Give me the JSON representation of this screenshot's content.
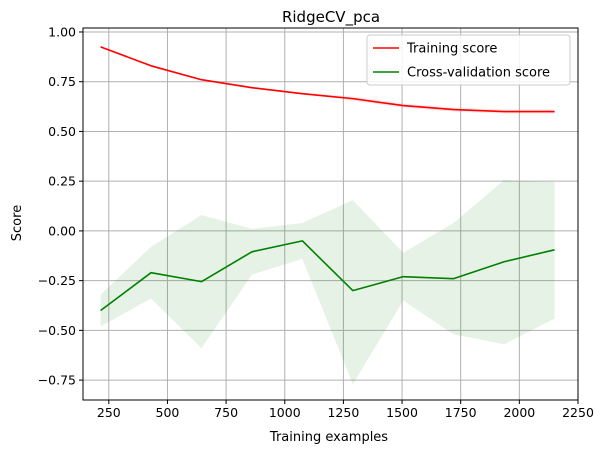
{
  "chart_data": {
    "type": "line",
    "title": "RidgeCV_pca",
    "xlabel": "Training examples",
    "ylabel": "Score",
    "xlim": [
      140,
      2250
    ],
    "ylim": [
      -0.85,
      1.02
    ],
    "xticks": [
      250,
      500,
      750,
      1000,
      1250,
      1500,
      1750,
      2000,
      2250
    ],
    "xtick_labels": [
      "250",
      "500",
      "750",
      "1000",
      "1250",
      "1500",
      "1750",
      "2000",
      "2250"
    ],
    "yticks": [
      -0.75,
      -0.5,
      -0.25,
      0.0,
      0.25,
      0.5,
      0.75,
      1.0
    ],
    "ytick_labels": [
      "−0.75",
      "−0.50",
      "−0.25",
      "0.00",
      "0.25",
      "0.50",
      "0.75",
      "1.00"
    ],
    "grid": true,
    "legend_position": "top-right",
    "x": [
      215,
      430,
      645,
      860,
      1075,
      1290,
      1505,
      1720,
      1935,
      2150
    ],
    "series": [
      {
        "name": "Training score",
        "color": "#ff0000",
        "values": [
          0.925,
          0.83,
          0.76,
          0.72,
          0.69,
          0.665,
          0.63,
          0.61,
          0.6,
          0.6
        ],
        "band_lower": [
          0.92,
          0.825,
          0.755,
          0.715,
          0.685,
          0.655,
          0.62,
          0.6,
          0.59,
          0.59
        ],
        "band_upper": [
          0.93,
          0.835,
          0.765,
          0.725,
          0.695,
          0.675,
          0.64,
          0.62,
          0.61,
          0.61
        ]
      },
      {
        "name": "Cross-validation score",
        "color": "#008000",
        "values": [
          -0.4,
          -0.21,
          -0.255,
          -0.105,
          -0.05,
          -0.3,
          -0.23,
          -0.24,
          -0.155,
          -0.095
        ],
        "band_lower": [
          -0.48,
          -0.34,
          -0.59,
          -0.22,
          -0.14,
          -0.77,
          -0.35,
          -0.52,
          -0.57,
          -0.44
        ],
        "band_upper": [
          -0.32,
          -0.08,
          0.08,
          0.01,
          0.04,
          0.155,
          -0.11,
          0.04,
          0.255,
          0.245
        ]
      }
    ]
  }
}
